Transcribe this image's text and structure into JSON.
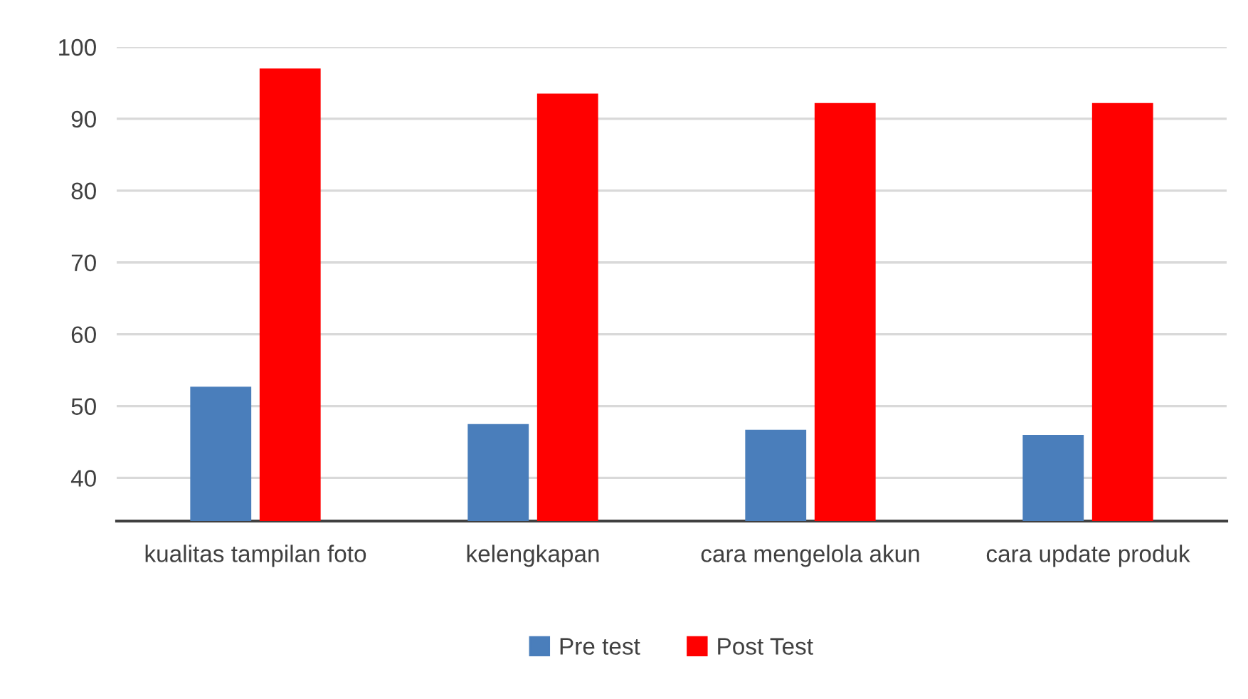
{
  "chart_data": {
    "type": "bar",
    "categories": [
      "kualitas tampilan foto",
      "kelengkapan",
      "cara mengelola akun",
      "cara update produk"
    ],
    "series": [
      {
        "name": "Pre test",
        "color": "#4a7ebb",
        "values": [
          52.7,
          47.5,
          46.7,
          46.0
        ]
      },
      {
        "name": "Post Test",
        "color": "#ff0000",
        "values": [
          97.0,
          93.5,
          92.2,
          92.2
        ]
      }
    ],
    "ylim": [
      34,
      100
    ],
    "yticks": [
      40,
      50,
      60,
      70,
      80,
      90,
      100
    ],
    "grid": "y",
    "legend": "bottom"
  }
}
